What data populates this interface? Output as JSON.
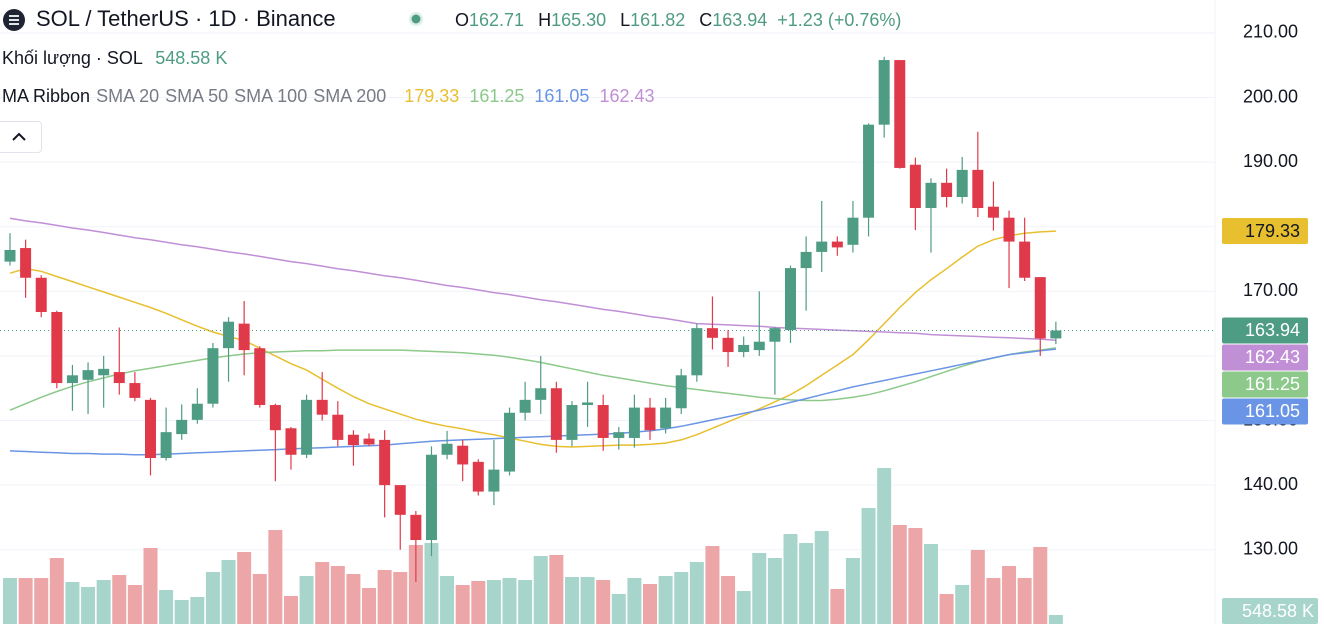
{
  "chart_data": {
    "type": "candlestick",
    "title": "SOL / TetherUS · 1D · Binance",
    "ohlc_legend": [
      {
        "key": "O",
        "label": "162.71"
      },
      {
        "key": "H",
        "label": "165.30"
      },
      {
        "key": "L",
        "label": "161.82"
      },
      {
        "key": "C",
        "label": "163.94"
      }
    ],
    "change_label": "+1.23 (+0.76%)",
    "up_color": "#4f9c84",
    "down_color": "#e03a4a",
    "open": [
      174.6,
      176.7,
      172.1,
      166.8,
      155.8,
      156.3,
      157,
      157.5,
      155.8,
      153.2,
      144.2,
      147.9,
      150.1,
      152.6,
      161.2,
      165,
      161.2,
      152.4,
      148.8,
      144.7,
      153.2,
      150.9,
      147.8,
      147.2,
      147,
      140,
      135.4,
      131.5,
      144.7,
      146.1,
      143.6,
      139,
      142.1,
      151.2,
      153.2,
      155,
      147,
      152.4,
      152.4,
      147.3,
      147.3,
      152,
      148.8,
      151.9,
      157,
      164.3,
      162.8,
      160.6,
      160.9,
      162.2,
      164,
      173.6,
      176.1,
      177.7,
      177.2,
      181.4,
      195.8,
      205.8,
      189.6,
      182.9,
      186.8,
      184.6,
      188.8,
      183.1,
      181.4,
      177.7,
      172.2,
      162.71
    ],
    "high": [
      179,
      178,
      172.5,
      167,
      158.6,
      159,
      160,
      164.4,
      157.5,
      153.5,
      152,
      152.5,
      155,
      162,
      166,
      168.5,
      161.5,
      152.6,
      149,
      154,
      157.5,
      153,
      148.5,
      148,
      148.5,
      140,
      136,
      146,
      148.4,
      147,
      144,
      147,
      152,
      156,
      160,
      156,
      153,
      156,
      154,
      149,
      154,
      153.5,
      153.5,
      158,
      165,
      169.2,
      164,
      163,
      170,
      164.5,
      174,
      178.5,
      184,
      178.5,
      184,
      196,
      206.3,
      205.8,
      190.7,
      187.5,
      189,
      190.8,
      194.7,
      187,
      182.5,
      181.4,
      172.2,
      165.3
    ],
    "low": [
      174,
      169,
      166,
      155,
      151.5,
      151,
      152,
      154,
      153,
      141.5,
      143.8,
      147,
      149.5,
      152,
      156,
      157,
      152,
      140.6,
      142.4,
      144.2,
      150,
      146,
      143,
      146,
      135,
      130,
      125,
      129,
      144,
      140.6,
      138.4,
      136.9,
      141.5,
      150,
      151,
      145,
      146,
      149,
      145.3,
      145.5,
      145.8,
      147,
      148,
      151,
      156,
      161,
      158.3,
      159.8,
      160,
      154,
      162,
      167,
      173,
      175.5,
      176,
      178.5,
      193.8,
      189,
      179.5,
      176,
      183,
      183.6,
      181.5,
      179.4,
      170.5,
      171.6,
      160,
      161.82
    ],
    "close": [
      176.4,
      172.1,
      166.8,
      155.8,
      157,
      157.8,
      158,
      155.8,
      153.5,
      144.2,
      148.2,
      150.1,
      152.6,
      161.2,
      165.3,
      160.9,
      152.4,
      148.5,
      144.7,
      153.2,
      150.9,
      147,
      146.2,
      146.3,
      140,
      135.4,
      131.5,
      144.7,
      146.4,
      143.2,
      139,
      142.4,
      151.2,
      153.2,
      155,
      147,
      152.4,
      152.8,
      147.3,
      148.2,
      152,
      148.5,
      152,
      157,
      164.3,
      162.8,
      160.6,
      161.7,
      162.2,
      164.3,
      173.6,
      176.1,
      177.7,
      176.8,
      181.4,
      195.8,
      205.8,
      189.1,
      182.9,
      186.8,
      184.6,
      188.8,
      182.9,
      181.4,
      177.7,
      172.1,
      162.71,
      163.94
    ],
    "volume": {
      "name": "Khối lượng · SOL",
      "up_color": "#a8d5cb",
      "down_color": "#eca6a8",
      "values": [
        2806,
        2806,
        2806,
        4026,
        2562,
        2257,
        2684,
        2989,
        2379,
        4636,
        2074,
        1464,
        1647,
        3172,
        3904,
        4392,
        3050,
        5734,
        1708,
        2928,
        3782,
        3538,
        3050,
        2196,
        3294,
        3172,
        4819,
        4941,
        2928,
        2379,
        2623,
        2684,
        2806,
        2684,
        4148,
        4209,
        2867,
        2867,
        2684,
        1830,
        2806,
        2440,
        2928,
        3172,
        3782,
        4758,
        2928,
        2013,
        4331,
        4026,
        5490,
        4941,
        5673,
        2135,
        4026,
        7076,
        9516,
        6039,
        5856,
        4880,
        1830,
        2379,
        4514,
        2806,
        3538,
        2806,
        4697,
        548.58
      ],
      "last_label": "548.58 K"
    },
    "indicator": "MA Ribbon",
    "series": [
      {
        "name": "SMA 20",
        "color": "#e8bf2f",
        "values": [
          172.8,
          173.5,
          173.1,
          172.3,
          171.5,
          170.7,
          169.9,
          169.1,
          168.3,
          167.5,
          166.6,
          165.6,
          164.6,
          163.7,
          163.0,
          162.4,
          161.2,
          160.0,
          158.8,
          157.8,
          156.4,
          155.0,
          153.7,
          152.6,
          151.8,
          151.0,
          150.2,
          149.6,
          149.1,
          148.7,
          148.2,
          147.8,
          147.3,
          146.8,
          146.3,
          146.0,
          145.9,
          146.0,
          146.1,
          146.2,
          146.2,
          146.3,
          146.5,
          147.0,
          147.8,
          148.8,
          149.8,
          150.8,
          151.8,
          152.9,
          154.0,
          155.4,
          157.0,
          158.6,
          160.2,
          162.5,
          165.0,
          167.5,
          169.8,
          171.8,
          173.5,
          175.3,
          177.0,
          178.0,
          178.6,
          179.0,
          179.2,
          179.33
        ]
      },
      {
        "name": "SMA 50",
        "color": "#8cc98a",
        "values": [
          151.6,
          152.6,
          153.6,
          154.5,
          155.3,
          156.0,
          156.6,
          157.2,
          157.7,
          158.1,
          158.5,
          158.9,
          159.3,
          159.7,
          160.0,
          160.3,
          160.5,
          160.6,
          160.7,
          160.8,
          160.8,
          160.9,
          160.9,
          160.9,
          160.9,
          160.9,
          160.8,
          160.7,
          160.6,
          160.5,
          160.3,
          160.1,
          159.8,
          159.4,
          159.0,
          158.5,
          158.0,
          157.5,
          157.0,
          156.6,
          156.2,
          155.8,
          155.4,
          155.1,
          154.8,
          154.5,
          154.2,
          153.9,
          153.6,
          153.4,
          153.2,
          153.1,
          153.1,
          153.3,
          153.6,
          154.0,
          154.6,
          155.3,
          156.0,
          156.8,
          157.6,
          158.4,
          159.1,
          159.7,
          160.2,
          160.6,
          160.9,
          161.25
        ]
      },
      {
        "name": "SMA 100",
        "color": "#6a95e6",
        "values": [
          145.3,
          145.2,
          145.1,
          145.0,
          144.9,
          144.9,
          144.8,
          144.8,
          144.7,
          144.7,
          144.8,
          144.9,
          145.0,
          145.1,
          145.2,
          145.3,
          145.4,
          145.5,
          145.6,
          145.7,
          145.8,
          145.9,
          146.0,
          146.1,
          146.2,
          146.4,
          146.6,
          146.8,
          146.9,
          147.0,
          147.1,
          147.2,
          147.3,
          147.4,
          147.5,
          147.6,
          147.7,
          147.8,
          147.9,
          148.0,
          148.2,
          148.4,
          148.7,
          149.1,
          149.6,
          150.1,
          150.6,
          151.1,
          151.6,
          152.2,
          152.8,
          153.4,
          154.0,
          154.6,
          155.2,
          155.7,
          156.2,
          156.7,
          157.2,
          157.7,
          158.2,
          158.7,
          159.2,
          159.7,
          160.2,
          160.5,
          160.8,
          161.05
        ]
      },
      {
        "name": "SMA 200",
        "color": "#c18fd6",
        "values": [
          181.3,
          180.9,
          180.6,
          180.2,
          179.8,
          179.5,
          179.1,
          178.7,
          178.3,
          178.0,
          177.6,
          177.2,
          176.9,
          176.5,
          176.1,
          175.8,
          175.4,
          175.0,
          174.6,
          174.3,
          173.9,
          173.5,
          173.2,
          172.8,
          172.4,
          172.1,
          171.7,
          171.3,
          170.9,
          170.6,
          170.2,
          169.8,
          169.5,
          169.1,
          168.7,
          168.4,
          168.0,
          167.6,
          167.2,
          166.9,
          166.5,
          166.1,
          165.8,
          165.4,
          165.0,
          164.9,
          164.8,
          164.7,
          164.6,
          164.4,
          164.3,
          164.2,
          164.1,
          164.0,
          163.9,
          163.8,
          163.7,
          163.6,
          163.5,
          163.3,
          163.2,
          163.1,
          163.0,
          162.9,
          162.8,
          162.7,
          162.6,
          162.43
        ]
      }
    ],
    "ylim": [
      118.5,
      215.1
    ],
    "yticks": [
      {
        "value": 130,
        "label": "130.00"
      },
      {
        "value": 140,
        "label": "140.00"
      },
      {
        "value": 150,
        "label": "150.00"
      },
      {
        "value": 160,
        "label": "160.00"
      },
      {
        "value": 170,
        "label": "170.00"
      },
      {
        "value": 180,
        "label": "180.00"
      },
      {
        "value": 190,
        "label": "190.00"
      },
      {
        "value": 200,
        "label": "200.00"
      },
      {
        "value": 210,
        "label": "210.00"
      }
    ],
    "grid": true
  }
}
